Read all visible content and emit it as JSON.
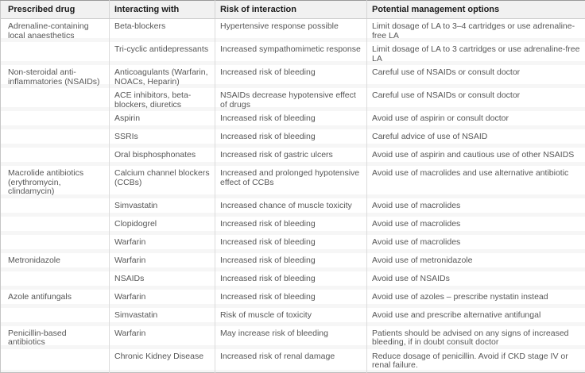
{
  "colors": {
    "header_bg": "#f1f1f1",
    "row_bg": "#ffffff",
    "separator_band": "#f6f6f6",
    "grid_line": "#dcdcdc",
    "outer_border": "#c6c6c6",
    "header_text": "#1c1c1c",
    "body_text": "#565656"
  },
  "chart_data": {
    "type": "table",
    "columns": [
      "Prescribed drug",
      "Interacting with",
      "Risk of interaction",
      "Potential management options"
    ],
    "rows": [
      [
        "Adrenaline-containing local anaesthetics",
        "Beta-blockers",
        "Hypertensive response possible",
        "Limit dosage of LA to 3–4 cartridges or use adrenaline-free LA"
      ],
      [
        "",
        "Tri-cyclic antidepressants",
        "Increased sympathomimetic response",
        "Limit dosage of LA to 3 cartridges or use adrenaline-free LA"
      ],
      [
        "Non-steroidal anti-inflammatories (NSAIDs)",
        "Anticoagulants (Warfarin, NOACs, Heparin)",
        "Increased risk of bleeding",
        "Careful use of NSAIDs or consult doctor"
      ],
      [
        "",
        "ACE inhibitors, beta-blockers, diuretics",
        "NSAIDs decrease hypotensive effect of drugs",
        "Careful use of NSAIDs or consult doctor"
      ],
      [
        "",
        "Aspirin",
        "Increased risk of bleeding",
        "Avoid use of aspirin or consult doctor"
      ],
      [
        "",
        "SSRIs",
        "Increased risk of bleeding",
        "Careful advice of use of NSAID"
      ],
      [
        "",
        "Oral bisphosphonates",
        "Increased risk of gastric ulcers",
        "Avoid use of aspirin and cautious use of other NSAIDS"
      ],
      [
        "Macrolide antibiotics (erythromycin, clindamycin)",
        "Calcium channel blockers (CCBs)",
        "Increased and prolonged hypotensive effect of CCBs",
        "Avoid use of macrolides and use alternative antibiotic"
      ],
      [
        "",
        "Simvastatin",
        "Increased chance of muscle toxicity",
        "Avoid use of macrolides"
      ],
      [
        "",
        "Clopidogrel",
        "Increased risk of bleeding",
        "Avoid use of macrolides"
      ],
      [
        "",
        "Warfarin",
        "Increased risk of bleeding",
        "Avoid use of macrolides"
      ],
      [
        "Metronidazole",
        "Warfarin",
        "Increased risk of bleeding",
        "Avoid use of metronidazole"
      ],
      [
        "",
        "NSAIDs",
        "Increased risk of bleeding",
        "Avoid use of NSAIDs"
      ],
      [
        "Azole antifungals",
        "Warfarin",
        "Increased risk of bleeding",
        "Avoid use of azoles – prescribe nystatin instead"
      ],
      [
        "",
        "Simvastatin",
        "Risk of muscle of toxicity",
        "Avoid use and prescribe alternative antifungal"
      ],
      [
        "Penicillin-based antibiotics",
        "Warfarin",
        "May increase risk of bleeding",
        "Patients should be advised on any signs of increased bleeding, if in doubt consult doctor"
      ],
      [
        "",
        "Chronic Kidney Disease",
        "Increased risk of renal damage",
        "Reduce dosage of penicillin. Avoid if CKD stage IV or renal failure."
      ]
    ]
  }
}
